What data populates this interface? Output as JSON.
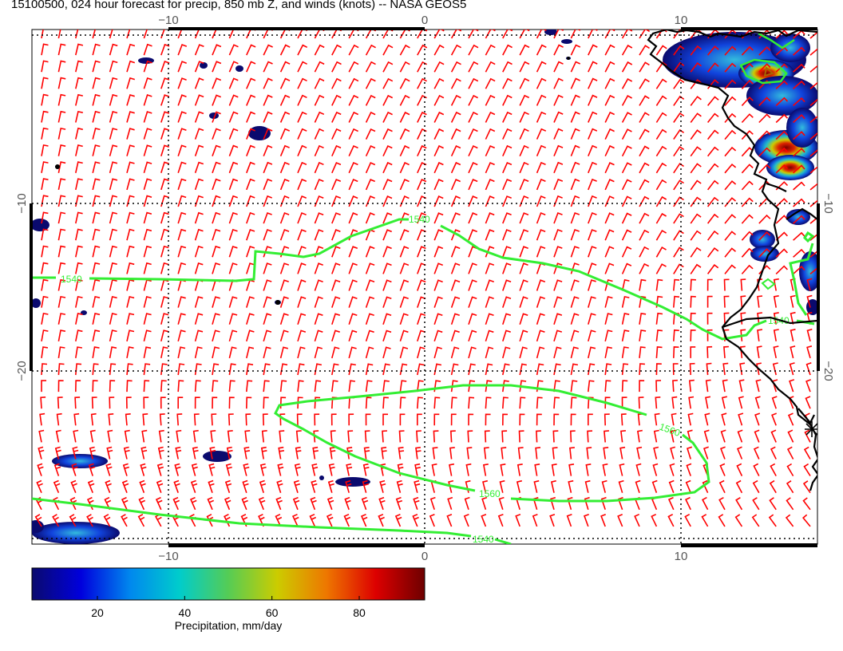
{
  "title": "15100500, 024 hour forecast for precip, 850 mb Z, and winds (knots) -- NASA GEOS5",
  "axes": {
    "lon_ticks": [
      {
        "value": -10,
        "label": "−10"
      },
      {
        "value": 0,
        "label": "0"
      },
      {
        "value": 10,
        "label": "10"
      }
    ],
    "lat_ticks": [
      {
        "value": -10,
        "label": "−10"
      },
      {
        "value": -20,
        "label": "−20"
      }
    ]
  },
  "contours": [
    {
      "label": "1540",
      "color": "#33ee33"
    },
    {
      "label": "1560",
      "color": "#33ee33"
    }
  ],
  "wind_barb_color": "#ff0000",
  "coastline_color": "#000000",
  "colorbar": {
    "title": "Precipitation, mm/day",
    "ticks": [
      {
        "value": 20,
        "label": "20"
      },
      {
        "value": 40,
        "label": "40"
      },
      {
        "value": 60,
        "label": "60"
      },
      {
        "value": 80,
        "label": "80"
      }
    ],
    "range": [
      5,
      95
    ],
    "colors": [
      "#0a0a6e",
      "#0000dd",
      "#0088ee",
      "#00cccc",
      "#55cc55",
      "#cccc00",
      "#ee7700",
      "#dd0000",
      "#6e0000"
    ]
  }
}
